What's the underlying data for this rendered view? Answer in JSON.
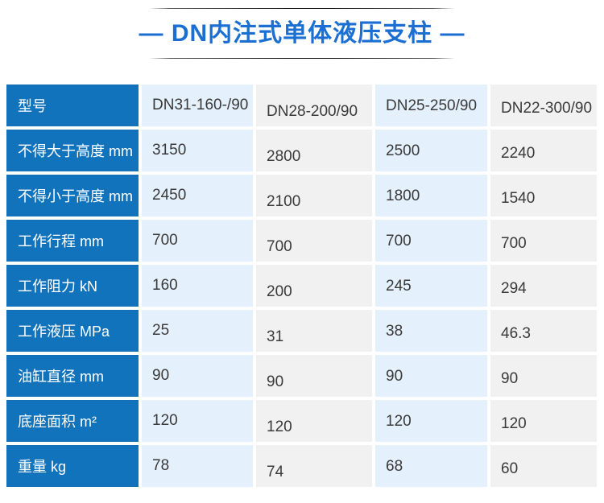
{
  "title": {
    "text": "— DN内注式单体液压支柱 —"
  },
  "colors": {
    "title_blue": "#1b6fd3",
    "header_blue": "#1273bd",
    "cell_blue": "#e4f0fb",
    "cell_gray": "#f1f1f1",
    "value_text": "#3a3a3a"
  },
  "table": {
    "corner_label": "型号",
    "models": [
      "DN31-160-/90",
      "DN28-200/90",
      "DN25-250/90",
      "DN22-300/90"
    ],
    "rows": [
      {
        "label": "不得大于高度 mm",
        "values": [
          "3150",
          "2800",
          "2500",
          "2240"
        ]
      },
      {
        "label": "不得小于高度 mm",
        "values": [
          "2450",
          "2100",
          "1800",
          "1540"
        ]
      },
      {
        "label": "工作行程 mm",
        "values": [
          "700",
          "700",
          "700",
          "700"
        ]
      },
      {
        "label": "工作阻力 kN",
        "values": [
          "160",
          "200",
          "245",
          "294"
        ]
      },
      {
        "label": "工作液压 MPa",
        "values": [
          "25",
          "31",
          "38",
          "46.3"
        ]
      },
      {
        "label": "油缸直径 mm",
        "values": [
          "90",
          "90",
          "90",
          "90"
        ]
      },
      {
        "label": "底座面积 m²",
        "values": [
          "120",
          "120",
          "120",
          "120"
        ]
      },
      {
        "label": "重量 kg",
        "values": [
          "78",
          "74",
          "68",
          "60"
        ]
      }
    ]
  },
  "chart_data": {
    "type": "table",
    "title": "DN内注式单体液压支柱",
    "columns": [
      "型号",
      "DN31-160-/90",
      "DN28-200/90",
      "DN25-250/90",
      "DN22-300/90"
    ],
    "rows": [
      [
        "不得大于高度 mm",
        3150,
        2800,
        2500,
        2240
      ],
      [
        "不得小于高度 mm",
        2450,
        2100,
        1800,
        1540
      ],
      [
        "工作行程 mm",
        700,
        700,
        700,
        700
      ],
      [
        "工作阻力 kN",
        160,
        200,
        245,
        294
      ],
      [
        "工作液压 MPa",
        25,
        31,
        38,
        46.3
      ],
      [
        "油缸直径 mm",
        90,
        90,
        90,
        90
      ],
      [
        "底座面积 m²",
        120,
        120,
        120,
        120
      ],
      [
        "重量 kg",
        78,
        74,
        68,
        60
      ]
    ]
  }
}
